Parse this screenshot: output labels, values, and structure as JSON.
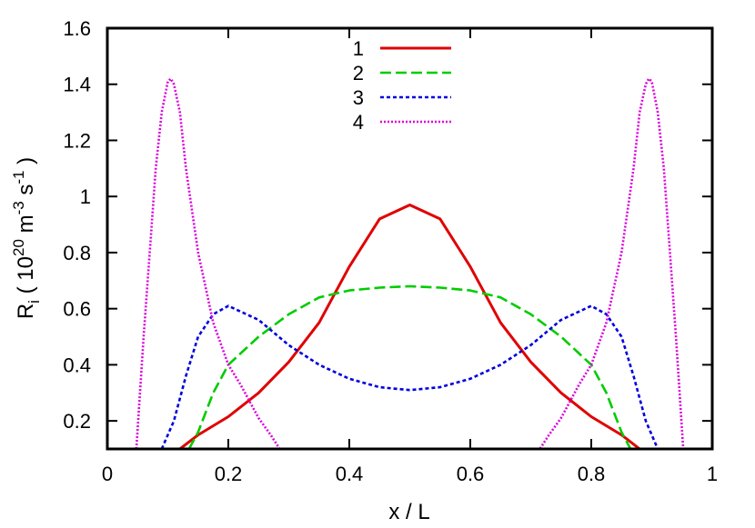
{
  "chart_data": {
    "type": "line",
    "title": "",
    "xlabel": "x / L",
    "ylabel": {
      "base": "R",
      "base_sub": "i",
      "open": " ( 10",
      "exp1": "20",
      "unit1": " m",
      "exp2": "-3",
      "unit2": " s",
      "exp3": "-1",
      "close": " )"
    },
    "xlim": [
      0,
      1
    ],
    "ylim": [
      0.1,
      1.6
    ],
    "xticks": [
      0,
      0.2,
      0.4,
      0.6,
      0.8,
      1
    ],
    "xtick_labels": [
      "0",
      "0.2",
      "0.4",
      "0.6",
      "0.8",
      "1"
    ],
    "yticks": [
      0.2,
      0.4,
      0.6,
      0.8,
      1,
      1.2,
      1.4,
      1.6
    ],
    "ytick_labels": [
      "0.2",
      "0.4",
      "0.6",
      "0.8",
      "1",
      "1.2",
      "1.4",
      "1.6"
    ],
    "grid": false,
    "legend_position": "top-center",
    "series": [
      {
        "name": "1",
        "color": "#e00000",
        "dash": "solid",
        "x": [
          0.12,
          0.15,
          0.2,
          0.25,
          0.3,
          0.35,
          0.4,
          0.45,
          0.5,
          0.55,
          0.6,
          0.65,
          0.7,
          0.75,
          0.8,
          0.85,
          0.88
        ],
        "y": [
          0.1,
          0.15,
          0.215,
          0.3,
          0.41,
          0.55,
          0.75,
          0.92,
          0.97,
          0.92,
          0.75,
          0.55,
          0.41,
          0.3,
          0.215,
          0.15,
          0.1
        ]
      },
      {
        "name": "2",
        "color": "#00cc00",
        "dash": "dashed",
        "x": [
          0.135,
          0.15,
          0.175,
          0.2,
          0.25,
          0.3,
          0.35,
          0.4,
          0.45,
          0.5,
          0.55,
          0.6,
          0.65,
          0.7,
          0.75,
          0.8,
          0.825,
          0.85,
          0.865
        ],
        "y": [
          0.1,
          0.16,
          0.3,
          0.4,
          0.5,
          0.58,
          0.64,
          0.665,
          0.675,
          0.68,
          0.675,
          0.665,
          0.64,
          0.58,
          0.5,
          0.4,
          0.3,
          0.16,
          0.1
        ]
      },
      {
        "name": "3",
        "color": "#0000dd",
        "dash": "dotted",
        "x": [
          0.09,
          0.11,
          0.13,
          0.15,
          0.175,
          0.2,
          0.25,
          0.3,
          0.35,
          0.4,
          0.45,
          0.5,
          0.55,
          0.6,
          0.65,
          0.7,
          0.75,
          0.8,
          0.825,
          0.85,
          0.87,
          0.89,
          0.91
        ],
        "y": [
          0.1,
          0.2,
          0.36,
          0.5,
          0.58,
          0.61,
          0.56,
          0.47,
          0.4,
          0.35,
          0.32,
          0.31,
          0.32,
          0.35,
          0.4,
          0.47,
          0.56,
          0.61,
          0.58,
          0.5,
          0.36,
          0.2,
          0.1
        ]
      },
      {
        "name": "4",
        "color": "#dd00dd",
        "dash": "dotted-fine",
        "x": [
          0.048,
          0.06,
          0.07,
          0.08,
          0.09,
          0.1,
          0.105,
          0.11,
          0.12,
          0.13,
          0.15,
          0.175,
          0.2,
          0.22,
          0.25,
          0.27,
          0.285,
          0.715,
          0.73,
          0.75,
          0.78,
          0.8,
          0.825,
          0.85,
          0.87,
          0.88,
          0.89,
          0.895,
          0.9,
          0.91,
          0.92,
          0.93,
          0.94,
          0.952
        ],
        "y": [
          0.1,
          0.5,
          0.8,
          1.1,
          1.3,
          1.41,
          1.42,
          1.4,
          1.3,
          1.1,
          0.8,
          0.55,
          0.4,
          0.33,
          0.21,
          0.15,
          0.1,
          0.1,
          0.15,
          0.21,
          0.33,
          0.4,
          0.55,
          0.8,
          1.1,
          1.3,
          1.4,
          1.42,
          1.41,
          1.3,
          1.1,
          0.8,
          0.5,
          0.1
        ]
      }
    ]
  }
}
